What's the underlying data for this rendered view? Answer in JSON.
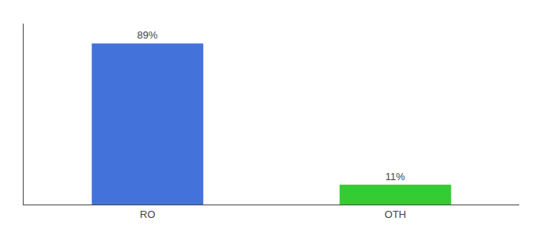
{
  "chart_data": {
    "type": "bar",
    "categories": [
      "RO",
      "OTH"
    ],
    "values": [
      89,
      11
    ],
    "value_labels": [
      "89%",
      "11%"
    ],
    "data_labels": true,
    "colors": [
      "#4472db",
      "#33cc33"
    ],
    "ylim": [
      0,
      100
    ],
    "yticks": [],
    "tick_labels": "x",
    "grid": false
  }
}
